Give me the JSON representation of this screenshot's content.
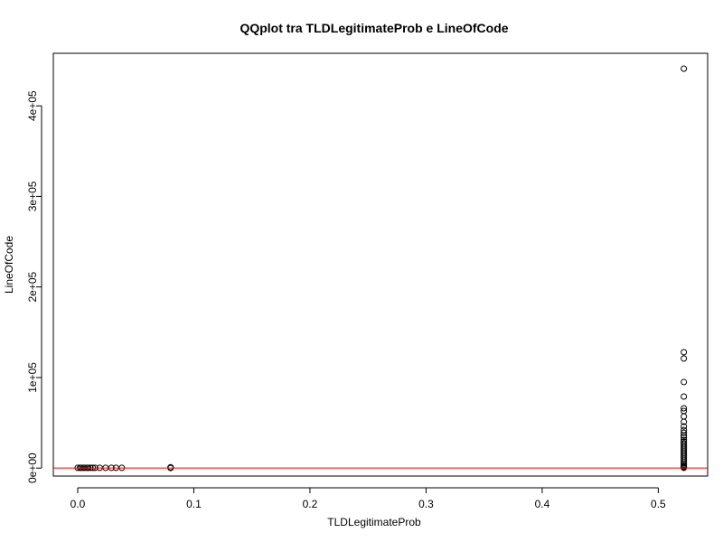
{
  "chart_data": {
    "type": "scatter",
    "title": "QQplot tra TLDLegitimateProb e LineOfCode",
    "xlabel": "TLDLegitimateProb",
    "ylabel": "LineOfCode",
    "xlim": [
      -0.021,
      0.5425
    ],
    "ylim": [
      -8800,
      458000
    ],
    "xticks": [
      0.0,
      0.1,
      0.2,
      0.3,
      0.4,
      0.5
    ],
    "xtick_labels": [
      "0.0",
      "0.1",
      "0.2",
      "0.3",
      "0.4",
      "0.5"
    ],
    "yticks": [
      0,
      100000,
      200000,
      300000,
      400000
    ],
    "ytick_labels": [
      "0e+00",
      "1e+05",
      "2e+05",
      "3e+05",
      "4e+05"
    ],
    "reference_line": {
      "type": "horizontal",
      "y": 0,
      "color": "#ff0000"
    },
    "marker_color": "#000000",
    "series": [
      {
        "points": [
          [
            0.0,
            300
          ],
          [
            0.002,
            300
          ],
          [
            0.003,
            300
          ],
          [
            0.005,
            300
          ],
          [
            0.006,
            300
          ],
          [
            0.008,
            300
          ],
          [
            0.009,
            300
          ],
          [
            0.011,
            300
          ],
          [
            0.013,
            300
          ],
          [
            0.015,
            300
          ],
          [
            0.019,
            300
          ],
          [
            0.024,
            300
          ],
          [
            0.029,
            300
          ],
          [
            0.033,
            300
          ],
          [
            0.038,
            300
          ],
          [
            0.08,
            100
          ],
          [
            0.08,
            600
          ],
          [
            0.08,
            900
          ],
          [
            0.522,
            441000
          ],
          [
            0.522,
            128000
          ],
          [
            0.522,
            121000
          ],
          [
            0.522,
            95000
          ],
          [
            0.522,
            79000
          ],
          [
            0.522,
            66000
          ],
          [
            0.522,
            63000
          ],
          [
            0.522,
            57000
          ],
          [
            0.522,
            51000
          ],
          [
            0.522,
            46000
          ],
          [
            0.522,
            42000
          ],
          [
            0.522,
            39000
          ],
          [
            0.522,
            36000
          ],
          [
            0.522,
            34000
          ],
          [
            0.522,
            31000
          ],
          [
            0.522,
            29000
          ],
          [
            0.522,
            27000
          ],
          [
            0.522,
            25000
          ],
          [
            0.522,
            23000
          ],
          [
            0.522,
            21000
          ],
          [
            0.522,
            19000
          ],
          [
            0.522,
            17000
          ],
          [
            0.522,
            15000
          ],
          [
            0.522,
            13000
          ],
          [
            0.522,
            11000
          ],
          [
            0.522,
            9000
          ],
          [
            0.522,
            7000
          ],
          [
            0.522,
            5000
          ],
          [
            0.522,
            3500
          ],
          [
            0.522,
            2000
          ],
          [
            0.522,
            1000
          ],
          [
            0.522,
            300
          ]
        ]
      }
    ]
  }
}
